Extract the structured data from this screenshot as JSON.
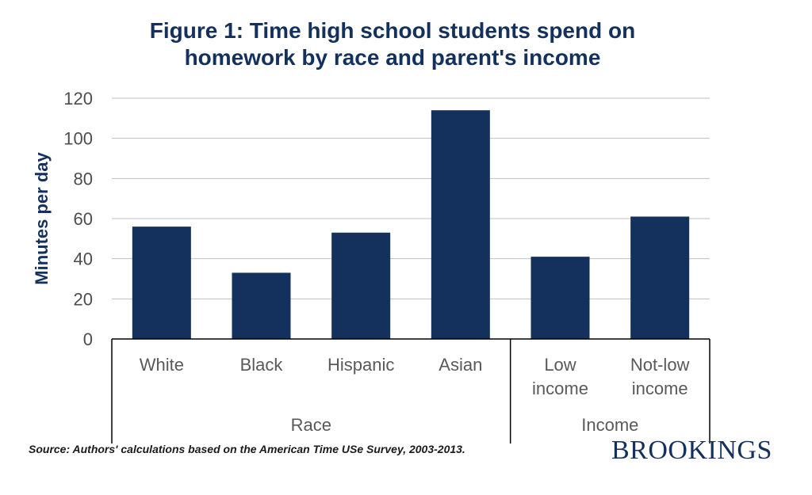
{
  "chart_data": {
    "type": "bar",
    "title": [
      "Figure 1: Time high school students spend on",
      "homework by race and parent's income"
    ],
    "ylabel": "Minutes per day",
    "xlabel": "",
    "ylim": [
      0,
      120
    ],
    "yticks": [
      0,
      20,
      40,
      60,
      80,
      100,
      120
    ],
    "grid": true,
    "bar_color": "#14305c",
    "categories": [
      [
        "White"
      ],
      [
        "Black"
      ],
      [
        "Hispanic"
      ],
      [
        "Asian"
      ],
      [
        "Low",
        "income"
      ],
      [
        "Not-low",
        "income"
      ]
    ],
    "values": [
      56,
      33,
      53,
      114,
      41,
      61
    ],
    "groups": [
      {
        "label": "Race",
        "count": 4
      },
      {
        "label": "Income",
        "count": 2
      }
    ]
  },
  "source": "Source: Authors' calculations based on the American  Time  USe Survey, 2003-2013.",
  "logo": "BROOKINGS"
}
